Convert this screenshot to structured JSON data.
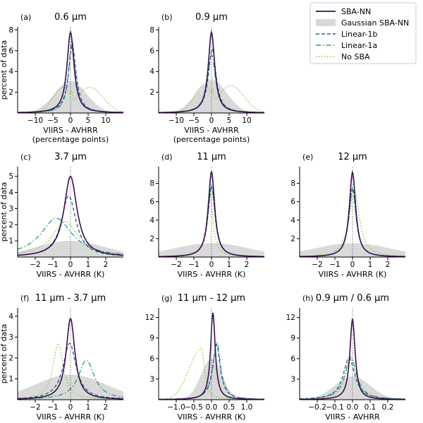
{
  "legend": {
    "placement": "top-right",
    "entries": [
      {
        "key": "sba_nn",
        "label": "SBA-NN",
        "color": "#3b0f4e",
        "style": "solid"
      },
      {
        "key": "gauss",
        "label": "Gaussian SBA-NN",
        "color": "#d9d9d9",
        "style": "fill"
      },
      {
        "key": "lin1b",
        "label": "Linear-1b",
        "color": "#2e5e8c",
        "style": "dashed"
      },
      {
        "key": "lin1a",
        "label": "Linear-1a",
        "color": "#2a9d7e",
        "style": "dashdot"
      },
      {
        "key": "nosba",
        "label": "No SBA",
        "color": "#8cc63f",
        "style": "dotted"
      }
    ]
  },
  "chart_data": [
    {
      "type": "line",
      "letter": "(a)",
      "title": "0.6 μm",
      "xlabel": "VIIRS - AVHRR",
      "xlabel2": "(percentage points)",
      "ylabel": "percent of data",
      "xlim": [
        -15,
        15
      ],
      "ylim": [
        0,
        8.3
      ],
      "xticks": [
        -10,
        -5,
        0,
        5,
        10
      ],
      "xtick_labels": [
        "−10",
        "−5",
        "0",
        "5",
        "10"
      ],
      "yticks": [
        2,
        4,
        6,
        8
      ],
      "ytick_labels": [
        "2",
        "4",
        "6",
        "8"
      ],
      "series": [
        {
          "key": "gauss",
          "peak": 3.1,
          "width": 4.5,
          "shape": "gauss"
        },
        {
          "key": "nosba",
          "peak": 2.9,
          "center": 0.0,
          "width": 5.0,
          "shape": "bimodal",
          "bump": [
            5.5,
            2.9
          ]
        },
        {
          "key": "lin1a",
          "peak": 7.0,
          "center": 0.4,
          "width": 1.1,
          "shape": "lorentz"
        },
        {
          "key": "lin1b",
          "peak": 6.5,
          "center": 0.5,
          "width": 1.3,
          "shape": "lorentz"
        },
        {
          "key": "sba_nn",
          "peak": 7.8,
          "center": 0.0,
          "width": 1.2,
          "shape": "lorentz"
        }
      ]
    },
    {
      "type": "line",
      "letter": "(b)",
      "title": "0.9 μm",
      "xlabel": "VIIRS - AVHRR",
      "xlabel2": "(percentage points)",
      "ylabel": "",
      "xlim": [
        -15,
        15
      ],
      "ylim": [
        0,
        8.3
      ],
      "xticks": [
        -10,
        -5,
        0,
        5,
        10
      ],
      "xtick_labels": [
        "−10",
        "−5",
        "0",
        "5",
        "10"
      ],
      "yticks": [
        2,
        4,
        6,
        8
      ],
      "ytick_labels": [
        "2",
        "4",
        "6",
        "8"
      ],
      "series": [
        {
          "key": "gauss",
          "peak": 3.2,
          "width": 4.3,
          "shape": "gauss"
        },
        {
          "key": "nosba",
          "peak": 3.1,
          "center": 0.0,
          "width": 5.0,
          "shape": "bimodal",
          "bump": [
            5.5,
            3.1
          ]
        },
        {
          "key": "lin1a",
          "peak": 5.6,
          "center": 0.0,
          "width": 1.4,
          "shape": "lorentz"
        },
        {
          "key": "lin1b",
          "peak": 6.2,
          "center": 0.2,
          "width": 1.3,
          "shape": "lorentz"
        },
        {
          "key": "sba_nn",
          "peak": 7.8,
          "center": 0.0,
          "width": 1.1,
          "shape": "lorentz"
        }
      ]
    },
    {
      "type": "line",
      "letter": "(c)",
      "title": "3.7 μm",
      "xlabel": "VIIRS - AVHRR (K)",
      "xlabel2": "",
      "ylabel": "percent of data",
      "xlim": [
        -3,
        3
      ],
      "ylim": [
        0,
        5.6
      ],
      "xticks": [
        -2,
        -1,
        0,
        1,
        2
      ],
      "xtick_labels": [
        "−2",
        "−1",
        "0",
        "1",
        "2"
      ],
      "yticks": [
        1,
        2,
        3,
        4,
        5
      ],
      "ytick_labels": [
        "1",
        "2",
        "3",
        "4",
        "5"
      ],
      "series": [
        {
          "key": "gauss",
          "peak": 1.0,
          "width": 2.0,
          "shape": "gauss"
        },
        {
          "key": "nosba",
          "peak": 2.2,
          "center": -0.3,
          "width": 0.9,
          "shape": "lorentz"
        },
        {
          "key": "lin1a",
          "peak": 2.4,
          "center": -0.8,
          "width": 1.1,
          "shape": "lorentz"
        },
        {
          "key": "lin1b",
          "peak": 3.8,
          "center": -0.1,
          "width": 0.5,
          "shape": "lorentz"
        },
        {
          "key": "sba_nn",
          "peak": 5.0,
          "center": 0.0,
          "width": 0.45,
          "shape": "lorentz"
        }
      ]
    },
    {
      "type": "line",
      "letter": "(d)",
      "title": "11 μm",
      "xlabel": "VIIRS - AVHRR (K)",
      "xlabel2": "",
      "ylabel": "",
      "xlim": [
        -3,
        3
      ],
      "ylim": [
        0,
        9.8
      ],
      "xticks": [
        -2,
        -1,
        0,
        1,
        2
      ],
      "xtick_labels": [
        "−2",
        "−1",
        "0",
        "1",
        "2"
      ],
      "yticks": [
        2,
        4,
        6,
        8
      ],
      "ytick_labels": [
        "2",
        "4",
        "6",
        "8"
      ],
      "series": [
        {
          "key": "gauss",
          "peak": 1.5,
          "width": 2.2,
          "shape": "gauss"
        },
        {
          "key": "nosba",
          "peak": 7.4,
          "center": -0.1,
          "width": 0.2,
          "shape": "lorentz"
        },
        {
          "key": "lin1a",
          "peak": 7.6,
          "center": 0.0,
          "width": 0.25,
          "shape": "lorentz"
        },
        {
          "key": "lin1b",
          "peak": 7.7,
          "center": 0.0,
          "width": 0.24,
          "shape": "lorentz"
        },
        {
          "key": "sba_nn",
          "peak": 9.3,
          "center": 0.0,
          "width": 0.22,
          "shape": "lorentz"
        }
      ]
    },
    {
      "type": "line",
      "letter": "(e)",
      "title": "12 μm",
      "xlabel": "VIIRS - AVHRR (K)",
      "xlabel2": "",
      "ylabel": "",
      "xlim": [
        -3,
        3
      ],
      "ylim": [
        0,
        9.8
      ],
      "xticks": [
        -2,
        -1,
        0,
        1,
        2
      ],
      "xtick_labels": [
        "−2",
        "−1",
        "0",
        "1",
        "2"
      ],
      "yticks": [
        2,
        4,
        6,
        8
      ],
      "ytick_labels": [
        "2",
        "4",
        "6",
        "8"
      ],
      "series": [
        {
          "key": "gauss",
          "peak": 1.5,
          "width": 2.2,
          "shape": "gauss"
        },
        {
          "key": "nosba",
          "peak": 7.3,
          "center": 0.1,
          "width": 0.35,
          "shape": "lorentz"
        },
        {
          "key": "lin1a",
          "peak": 7.3,
          "center": 0.0,
          "width": 0.25,
          "shape": "lorentz"
        },
        {
          "key": "lin1b",
          "peak": 7.5,
          "center": 0.0,
          "width": 0.25,
          "shape": "lorentz"
        },
        {
          "key": "sba_nn",
          "peak": 9.2,
          "center": 0.0,
          "width": 0.22,
          "shape": "lorentz"
        }
      ]
    },
    {
      "type": "line",
      "letter": "(f)",
      "title": "11 μm - 3.7 μm",
      "xlabel": "VIIRS - AVHRR (K)",
      "xlabel2": "",
      "ylabel": "percent of data",
      "xlim": [
        -3,
        3
      ],
      "ylim": [
        0,
        4.4
      ],
      "xticks": [
        -2,
        -1,
        0,
        1,
        2
      ],
      "xtick_labels": [
        "−2",
        "−1",
        "0",
        "1",
        "2"
      ],
      "yticks": [
        1,
        2,
        3,
        4
      ],
      "ytick_labels": [
        "1",
        "2",
        "3",
        "4"
      ],
      "series": [
        {
          "key": "gauss",
          "peak": 1.2,
          "width": 2.0,
          "shape": "gauss"
        },
        {
          "key": "nosba",
          "peak": 2.7,
          "center": -0.7,
          "width": 0.35,
          "shape": "lorentz"
        },
        {
          "key": "lin1a",
          "peak": 1.9,
          "center": 0.9,
          "width": 0.55,
          "shape": "lorentz"
        },
        {
          "key": "lin1b",
          "peak": 2.7,
          "center": -0.05,
          "width": 0.45,
          "shape": "lorentz"
        },
        {
          "key": "sba_nn",
          "peak": 3.9,
          "center": 0.0,
          "width": 0.3,
          "shape": "lorentz"
        }
      ]
    },
    {
      "type": "line",
      "letter": "(g)",
      "title": "11 μm - 12 μm",
      "xlabel": "VIIRS - AVHRR (K)",
      "xlabel2": "",
      "ylabel": "",
      "xlim": [
        -1.5,
        1.5
      ],
      "ylim": [
        0,
        13.4
      ],
      "xticks": [
        -1.0,
        -0.5,
        0.0,
        0.5,
        1.0
      ],
      "xtick_labels": [
        "−1.0",
        "−0.5",
        "0.0",
        "0.5",
        "1.0"
      ],
      "yticks": [
        3,
        6,
        9,
        12
      ],
      "ytick_labels": [
        "3",
        "6",
        "9",
        "12"
      ],
      "series": [
        {
          "key": "gauss",
          "peak": 6.0,
          "width": 0.3,
          "shape": "gauss"
        },
        {
          "key": "nosba",
          "peak": 7.5,
          "center": -0.28,
          "width": 0.22,
          "shape": "skew"
        },
        {
          "key": "lin1a",
          "peak": 8.3,
          "center": 0.15,
          "width": 0.13,
          "shape": "lorentz"
        },
        {
          "key": "lin1b",
          "peak": 8.1,
          "center": 0.14,
          "width": 0.13,
          "shape": "lorentz"
        },
        {
          "key": "sba_nn",
          "peak": 12.7,
          "center": 0.04,
          "width": 0.08,
          "shape": "lorentz"
        }
      ]
    },
    {
      "type": "line",
      "letter": "(h)",
      "title": "0.9 μm / 0.6 μm",
      "xlabel": "VIIRS - AVHRR",
      "xlabel2": "",
      "ylabel": "",
      "xlim": [
        -0.3,
        0.3
      ],
      "ylim": [
        0,
        13.4
      ],
      "xticks": [
        -0.2,
        -0.1,
        0.0,
        0.1,
        0.2
      ],
      "xtick_labels": [
        "−0.2",
        "−0.1",
        "0.0",
        "0.1",
        "0.2"
      ],
      "yticks": [
        3,
        6,
        9,
        12
      ],
      "ytick_labels": [
        "3",
        "6",
        "9",
        "12"
      ],
      "series": [
        {
          "key": "gauss",
          "peak": 3.4,
          "width": 0.1,
          "shape": "gauss"
        },
        {
          "key": "nosba",
          "peak": 6.3,
          "center": -0.01,
          "width": 0.035,
          "shape": "lorentz"
        },
        {
          "key": "lin1a",
          "peak": 6.2,
          "center": -0.01,
          "width": 0.04,
          "shape": "lorentz"
        },
        {
          "key": "lin1b",
          "peak": 6.1,
          "center": -0.02,
          "width": 0.04,
          "shape": "lorentz"
        },
        {
          "key": "sba_nn",
          "peak": 11.8,
          "center": 0.0,
          "width": 0.018,
          "shape": "lorentz"
        }
      ]
    }
  ]
}
